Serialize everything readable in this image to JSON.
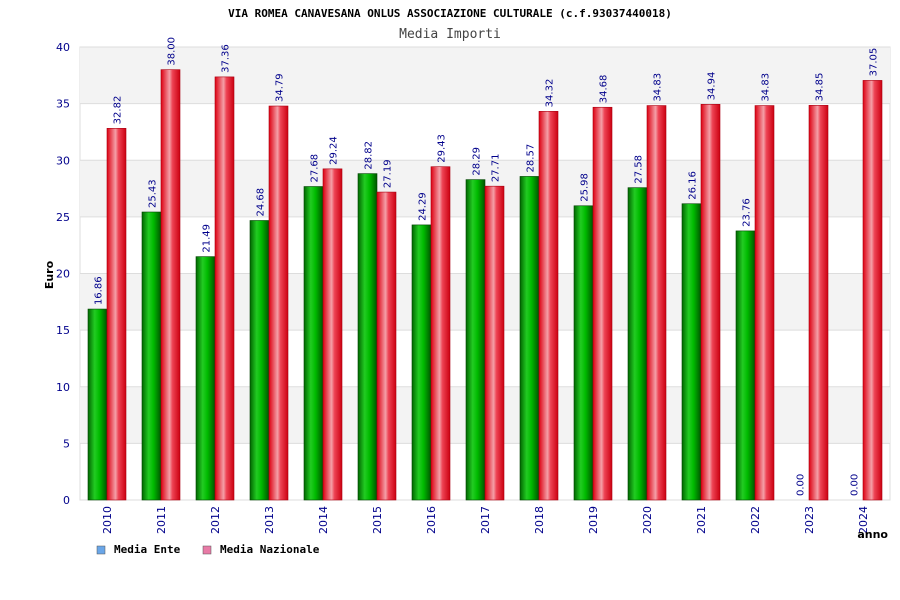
{
  "chart_data": {
    "type": "bar",
    "title": "VIA ROMEA CANAVESANA ONLUS ASSOCIAZIONE CULTURALE (c.f.93037440018)",
    "subtitle": "Media Importi",
    "xlabel": "anno",
    "ylabel": "Euro",
    "ylim": [
      0,
      40
    ],
    "yticks": [
      "0",
      "5",
      "10",
      "15",
      "20",
      "25",
      "30",
      "35",
      "40"
    ],
    "categories": [
      "2010",
      "2011",
      "2012",
      "2013",
      "2014",
      "2015",
      "2016",
      "2017",
      "2018",
      "2019",
      "2020",
      "2021",
      "2022",
      "2023",
      "2024"
    ],
    "series": [
      {
        "name": "Media Ente",
        "color": "#00aa00",
        "legend_color": "#6aa6e8",
        "values": [
          16.86,
          25.43,
          21.49,
          24.68,
          27.68,
          28.82,
          24.29,
          28.29,
          28.57,
          25.98,
          27.58,
          26.16,
          23.76,
          0.0,
          0.0
        ],
        "labels": [
          "16.86",
          "25.43",
          "21.49",
          "24.68",
          "27.68",
          "28.82",
          "24.29",
          "28.29",
          "28.57",
          "25.98",
          "27.58",
          "26.16",
          "23.76",
          "0.00",
          "0.00"
        ]
      },
      {
        "name": "Media Nazionale",
        "color": "#ee1122",
        "legend_color": "#e87aa6",
        "values": [
          32.82,
          38.0,
          37.36,
          34.79,
          29.24,
          27.19,
          29.43,
          27.71,
          34.32,
          34.68,
          34.83,
          34.94,
          34.83,
          34.85,
          37.05
        ],
        "labels": [
          "32.82",
          "38.00",
          "37.36",
          "34.79",
          "29.24",
          "27.19",
          "29.43",
          "27.71",
          "34.32",
          "34.68",
          "34.83",
          "34.94",
          "34.83",
          "34.85",
          "37.05"
        ]
      }
    ],
    "legend_position": "bottom-left"
  }
}
